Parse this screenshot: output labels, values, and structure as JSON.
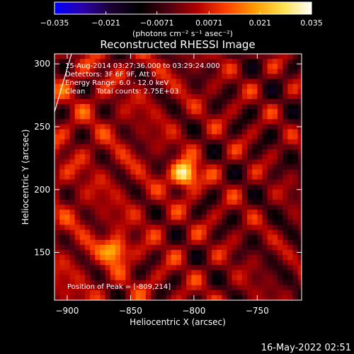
{
  "colorbar": {
    "min": -0.035,
    "max": 0.035,
    "ticks": [
      "-0.035",
      "-0.021",
      "-0.0071",
      "0.0071",
      "0.021",
      "0.035"
    ],
    "tick_values": [
      -0.035,
      -0.021,
      -0.0071,
      0.0071,
      0.021,
      0.035
    ],
    "units_label": "(photons cm⁻² s⁻¹ asec⁻²)",
    "colormap_stops": [
      "#0000ff",
      "#2a00a8",
      "#1a0030",
      "#000000",
      "#4d0010",
      "#b00000",
      "#ff4000",
      "#ff9a00",
      "#ffe04d",
      "#ffffff"
    ]
  },
  "chart_data": {
    "type": "heatmap",
    "title": "Reconstructed RHESSI Image",
    "xlabel": "Heliocentric X (arcsec)",
    "ylabel": "Heliocentric Y (arcsec)",
    "xlim": [
      -910,
      -715
    ],
    "ylim": [
      112,
      308
    ],
    "xticks": [
      -900,
      -850,
      -800,
      -750
    ],
    "yticks": [
      150,
      200,
      250,
      300
    ],
    "xtick_labels": [
      "−900",
      "−850",
      "−800",
      "−750"
    ],
    "ytick_labels": [
      "150",
      "200",
      "250",
      "300"
    ],
    "peak_position": [
      -809,
      214
    ],
    "sources": [
      {
        "x": -809,
        "y": 214,
        "intensity": 0.035
      },
      {
        "x": -864,
        "y": 154,
        "intensity": 0.024
      }
    ],
    "annotations": [
      "15-Aug-2014 03:27:36.000 to 03:29:24.000",
      "Detectors: 3F 6F 9F, Att 0",
      "Energy Range: 6.0 - 12.0 keV",
      "Clean     Total counts: 2.75E+03"
    ],
    "peak_label": "Position of Peak = [-809,214]"
  },
  "footer": {
    "timestamp": "16-May-2022 02:51"
  }
}
